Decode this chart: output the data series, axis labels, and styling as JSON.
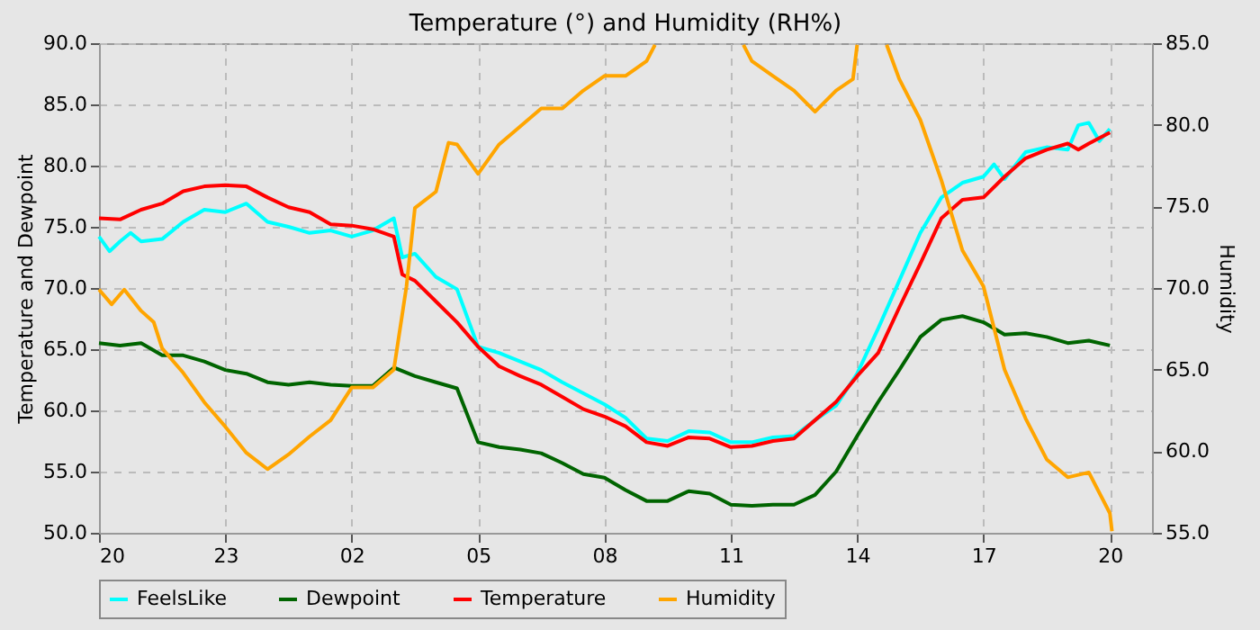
{
  "chart_data": {
    "type": "line",
    "title": "Temperature (°) and Humidity (RH%)",
    "ylabel": "Temperature and Dewpoint",
    "y2label": "Humidity",
    "xlim": [
      "--01-01T20:00",
      "--01-02T21:00"
    ],
    "xticks": [
      {
        "value": "--01-01T20:00",
        "label": "20"
      },
      {
        "value": "--01-01T23:00",
        "label": "23"
      },
      {
        "value": "--01-02T02:00",
        "label": "02"
      },
      {
        "value": "--01-02T05:00",
        "label": "05"
      },
      {
        "value": "--01-02T08:00",
        "label": "08"
      },
      {
        "value": "--01-02T11:00",
        "label": "11"
      },
      {
        "value": "--01-02T14:00",
        "label": "14"
      },
      {
        "value": "--01-02T17:00",
        "label": "17"
      },
      {
        "value": "--01-02T20:00",
        "label": "20"
      }
    ],
    "ylim": [
      50,
      90
    ],
    "yticks": [
      {
        "value": 50,
        "label": "50.0"
      },
      {
        "value": 55,
        "label": "55.0"
      },
      {
        "value": 60,
        "label": "60.0"
      },
      {
        "value": 65,
        "label": "65.0"
      },
      {
        "value": 70,
        "label": "70.0"
      },
      {
        "value": 75,
        "label": "75.0"
      },
      {
        "value": 80,
        "label": "80.0"
      },
      {
        "value": 85,
        "label": "85.0"
      },
      {
        "value": 90,
        "label": "90.0"
      }
    ],
    "y2lim": [
      55,
      85
    ],
    "y2ticks": [
      {
        "value": 55,
        "label": "55.0"
      },
      {
        "value": 60,
        "label": "60.0"
      },
      {
        "value": 65,
        "label": "65.0"
      },
      {
        "value": 70,
        "label": "70.0"
      },
      {
        "value": 75,
        "label": "75.0"
      },
      {
        "value": 80,
        "label": "80.0"
      },
      {
        "value": 85,
        "label": "85.0"
      }
    ],
    "grid": true,
    "legend": "bottom",
    "series": [
      {
        "name": "FeelsLike",
        "color": "#00ffff",
        "x": [
          "--01-01T20:00",
          "--01-01T20:15",
          "--01-01T20:30",
          "--01-01T20:45",
          "--01-01T21:00",
          "--01-01T21:30",
          "--01-01T22:00",
          "--01-01T22:30",
          "--01-01T23:00",
          "--01-01T23:30",
          "--01-02T00:00",
          "--01-02T00:30",
          "--01-02T01:00",
          "--01-02T01:30",
          "--01-02T02:00",
          "--01-02T02:30",
          "--01-02T03:00",
          "--01-02T03:12",
          "--01-02T03:30",
          "--01-02T04:00",
          "--01-02T04:30",
          "--01-02T05:00",
          "--01-02T05:30",
          "--01-02T06:00",
          "--01-02T06:30",
          "--01-02T07:00",
          "--01-02T07:30",
          "--01-02T08:00",
          "--01-02T08:30",
          "--01-02T09:00",
          "--01-02T09:30",
          "--01-02T10:00",
          "--01-02T10:30",
          "--01-02T11:00",
          "--01-02T11:30",
          "--01-02T12:00",
          "--01-02T12:30",
          "--01-02T13:00",
          "--01-02T13:30",
          "--01-02T14:00",
          "--01-02T14:30",
          "--01-02T15:00",
          "--01-02T15:30",
          "--01-02T16:00",
          "--01-02T16:30",
          "--01-02T17:00",
          "--01-02T17:15",
          "--01-02T17:30",
          "--01-02T18:00",
          "--01-02T18:30",
          "--01-02T19:00",
          "--01-02T19:15",
          "--01-02T19:30",
          "--01-02T19:45",
          "--01-02T20:00"
        ],
        "values": [
          74.2,
          73.0,
          73.8,
          74.5,
          73.8,
          74.0,
          75.4,
          76.4,
          76.2,
          76.9,
          75.4,
          75.0,
          74.5,
          74.7,
          74.2,
          74.7,
          75.7,
          72.5,
          72.8,
          70.9,
          69.9,
          65.2,
          64.7,
          64.0,
          63.3,
          62.3,
          61.4,
          60.5,
          59.4,
          57.7,
          57.5,
          58.3,
          58.2,
          57.4,
          57.4,
          57.8,
          57.9,
          59.2,
          60.4,
          63.0,
          66.7,
          70.6,
          74.5,
          77.4,
          78.6,
          79.1,
          80.1,
          78.9,
          81.1,
          81.5,
          81.3,
          83.3,
          83.5,
          82.0,
          83.0
        ]
      },
      {
        "name": "Dewpoint",
        "color": "#006400",
        "x": [
          "--01-01T20:00",
          "--01-01T20:30",
          "--01-01T21:00",
          "--01-01T21:30",
          "--01-01T22:00",
          "--01-01T22:30",
          "--01-01T23:00",
          "--01-01T23:30",
          "--01-02T00:00",
          "--01-02T00:30",
          "--01-02T01:00",
          "--01-02T01:30",
          "--01-02T02:00",
          "--01-02T02:30",
          "--01-02T03:00",
          "--01-02T03:30",
          "--01-02T04:00",
          "--01-02T04:30",
          "--01-02T05:00",
          "--01-02T05:30",
          "--01-02T06:00",
          "--01-02T06:30",
          "--01-02T07:00",
          "--01-02T07:30",
          "--01-02T08:00",
          "--01-02T08:30",
          "--01-02T09:00",
          "--01-02T09:30",
          "--01-02T10:00",
          "--01-02T10:30",
          "--01-02T11:00",
          "--01-02T11:30",
          "--01-02T12:00",
          "--01-02T12:30",
          "--01-02T13:00",
          "--01-02T13:30",
          "--01-02T14:00",
          "--01-02T14:30",
          "--01-02T15:00",
          "--01-02T15:30",
          "--01-02T16:00",
          "--01-02T16:30",
          "--01-02T17:00",
          "--01-02T17:30",
          "--01-02T18:00",
          "--01-02T18:30",
          "--01-02T19:00",
          "--01-02T19:30",
          "--01-02T20:00"
        ],
        "values": [
          65.5,
          65.3,
          65.5,
          64.5,
          64.5,
          64.0,
          63.3,
          63.0,
          62.3,
          62.1,
          62.3,
          62.1,
          62.0,
          62.0,
          63.5,
          62.8,
          62.3,
          61.8,
          57.4,
          57.0,
          56.8,
          56.5,
          55.7,
          54.8,
          54.5,
          53.5,
          52.6,
          52.6,
          53.4,
          53.2,
          52.3,
          52.2,
          52.3,
          52.3,
          53.1,
          55.0,
          57.9,
          60.7,
          63.3,
          66.0,
          67.4,
          67.7,
          67.2,
          66.2,
          66.3,
          66.0,
          65.5,
          65.7,
          65.3
        ]
      },
      {
        "name": "Temperature",
        "color": "#ff0000",
        "x": [
          "--01-01T20:00",
          "--01-01T20:30",
          "--01-01T21:00",
          "--01-01T21:30",
          "--01-01T22:00",
          "--01-01T22:30",
          "--01-01T23:00",
          "--01-01T23:30",
          "--01-02T00:00",
          "--01-02T00:30",
          "--01-02T01:00",
          "--01-02T01:30",
          "--01-02T02:00",
          "--01-02T02:30",
          "--01-02T03:00",
          "--01-02T03:12",
          "--01-02T03:30",
          "--01-02T04:00",
          "--01-02T04:30",
          "--01-02T05:00",
          "--01-02T05:30",
          "--01-02T06:00",
          "--01-02T06:30",
          "--01-02T07:00",
          "--01-02T07:30",
          "--01-02T08:00",
          "--01-02T08:30",
          "--01-02T09:00",
          "--01-02T09:30",
          "--01-02T10:00",
          "--01-02T10:30",
          "--01-02T11:00",
          "--01-02T11:30",
          "--01-02T12:00",
          "--01-02T12:30",
          "--01-02T13:00",
          "--01-02T13:30",
          "--01-02T14:00",
          "--01-02T14:30",
          "--01-02T15:00",
          "--01-02T15:30",
          "--01-02T16:00",
          "--01-02T16:30",
          "--01-02T17:00",
          "--01-02T17:30",
          "--01-02T18:00",
          "--01-02T18:30",
          "--01-02T19:00",
          "--01-02T19:15",
          "--01-02T19:30",
          "--01-02T20:00"
        ],
        "values": [
          75.7,
          75.6,
          76.4,
          76.9,
          77.9,
          78.3,
          78.4,
          78.3,
          77.4,
          76.6,
          76.2,
          75.2,
          75.1,
          74.8,
          74.2,
          71.1,
          70.6,
          68.9,
          67.2,
          65.2,
          63.6,
          62.8,
          62.1,
          61.1,
          60.1,
          59.5,
          58.7,
          57.4,
          57.1,
          57.8,
          57.7,
          57.0,
          57.1,
          57.5,
          57.7,
          59.2,
          60.7,
          62.8,
          64.7,
          68.4,
          72.0,
          75.7,
          77.2,
          77.4,
          79.1,
          80.6,
          81.3,
          81.8,
          81.3,
          81.8,
          82.7
        ]
      },
      {
        "name": "Humidity",
        "color": "#ffa500",
        "axis": "y2",
        "x": [
          "--01-01T20:00",
          "--01-01T20:18",
          "--01-01T20:36",
          "--01-01T21:00",
          "--01-01T21:18",
          "--01-01T21:30",
          "--01-01T22:00",
          "--01-01T22:30",
          "--01-01T23:00",
          "--01-01T23:30",
          "--01-02T00:00",
          "--01-02T00:30",
          "--01-02T01:00",
          "--01-02T01:30",
          "--01-02T02:00",
          "--01-02T02:30",
          "--01-02T03:00",
          "--01-02T03:18",
          "--01-02T03:30",
          "--01-02T04:00",
          "--01-02T04:18",
          "--01-02T04:30",
          "--01-02T05:00",
          "--01-02T05:30",
          "--01-02T06:00",
          "--01-02T06:30",
          "--01-02T07:00",
          "--01-02T07:30",
          "--01-02T08:00",
          "--01-02T08:30",
          "--01-02T09:00",
          "--01-02T09:12",
          "--01-02T10:00",
          "--01-02T11:18",
          "--01-02T11:30",
          "--01-02T12:00",
          "--01-02T12:30",
          "--01-02T13:00",
          "--01-02T13:30",
          "--01-02T13:54",
          "--01-02T14:00",
          "--01-02T14:18",
          "--01-02T14:42",
          "--01-02T15:00",
          "--01-02T15:30",
          "--01-02T16:00",
          "--01-02T16:30",
          "--01-02T17:00",
          "--01-02T17:30",
          "--01-02T18:00",
          "--01-02T18:30",
          "--01-02T19:00",
          "--01-02T19:30",
          "--01-02T20:00",
          "--01-02T20:03"
        ],
        "values": [
          69.9,
          69.0,
          69.9,
          68.6,
          67.9,
          66.3,
          64.8,
          63.0,
          61.5,
          59.9,
          58.9,
          59.8,
          60.9,
          61.9,
          63.9,
          63.9,
          65.0,
          70.1,
          74.9,
          75.9,
          78.9,
          78.8,
          77.0,
          78.8,
          79.9,
          81.0,
          81.0,
          82.1,
          83.0,
          83.0,
          83.9,
          84.9,
          null,
          84.9,
          83.9,
          83.0,
          82.1,
          80.8,
          82.1,
          82.8,
          84.9,
          null,
          84.9,
          82.8,
          80.3,
          76.6,
          72.3,
          70.1,
          65.0,
          62.0,
          59.5,
          58.4,
          58.7,
          56.2,
          55.1
        ]
      }
    ]
  }
}
